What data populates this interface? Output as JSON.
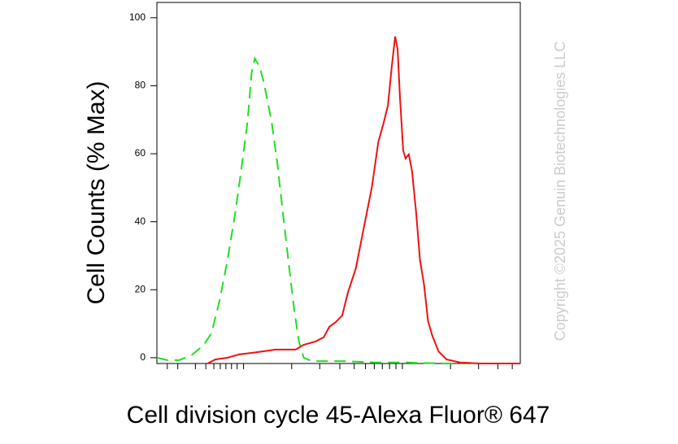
{
  "chart_data": {
    "type": "line",
    "x_label": "Cell division cycle 45-Alexa Fluor® 647",
    "y_label": "Cell Counts (% Max)",
    "annotation": "Copyright ©2025 Genuin Biotechnologies LLC",
    "xlim": [
      0,
      453
    ],
    "ylim": [
      -1.7,
      104.5
    ],
    "xticks": [
      13,
      26,
      48,
      61,
      71,
      79,
      86,
      93,
      100,
      108,
      168,
      203,
      228,
      246,
      260,
      271,
      281,
      290,
      298,
      306,
      366,
      401,
      425,
      443
    ],
    "yticks": [
      0,
      20,
      40,
      60,
      80,
      100
    ],
    "series": [
      {
        "color": "#22dd22",
        "dashed": true,
        "x": [
          0,
          13,
          28,
          43,
          58,
          68,
          78,
          88,
          98,
          105,
          113,
          118,
          122,
          128,
          133,
          138,
          143,
          150,
          158,
          165,
          171,
          177,
          183,
          193,
          233,
          273,
          313,
          353,
          453
        ],
        "values": [
          0,
          -0.7,
          -0.7,
          0.7,
          3.6,
          7.2,
          16.7,
          28.7,
          43.1,
          55.0,
          69.4,
          83.7,
          88.0,
          85.6,
          81.3,
          75.4,
          69.4,
          57.4,
          40.7,
          26.3,
          14.4,
          4.8,
          0,
          -1.0,
          -1.0,
          -1.4,
          -1.4,
          -1.7,
          -1.7
        ]
      },
      {
        "color": "#ee1111",
        "dashed": false,
        "x": [
          63,
          73,
          88,
          103,
          118,
          133,
          148,
          163,
          173,
          183,
          198,
          208,
          215,
          223,
          231,
          238,
          248,
          258,
          268,
          276,
          283,
          288,
          293,
          297,
          300,
          303,
          307,
          310,
          314,
          318,
          323,
          328,
          333,
          338,
          343,
          351,
          361,
          378,
          403,
          453
        ],
        "values": [
          -1.7,
          -0.5,
          0,
          1.0,
          1.4,
          1.9,
          2.4,
          2.4,
          2.4,
          3.8,
          4.8,
          6.0,
          9.1,
          10.5,
          12.4,
          19.1,
          26.3,
          38.3,
          50.2,
          63.4,
          69.4,
          74.2,
          86.1,
          94.5,
          90.9,
          76.6,
          61.0,
          58.6,
          59.8,
          55.0,
          43.1,
          28.7,
          21.5,
          10.8,
          6.7,
          1.9,
          -0.5,
          -1.4,
          -1.7,
          -1.7
        ]
      }
    ]
  }
}
